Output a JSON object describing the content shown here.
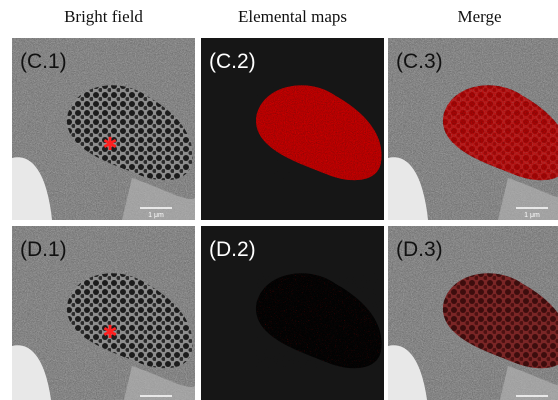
{
  "column_headers": [
    "Bright field",
    "Elemental maps",
    "Merge"
  ],
  "rows": [
    {
      "panels": [
        {
          "label": "(C.1)",
          "scale_bar": "1 μm"
        },
        {
          "label": "(C.2)"
        },
        {
          "label": "(C.3)",
          "scale_bar": "1 μm"
        }
      ]
    },
    {
      "panels": [
        {
          "label": "(D.1)",
          "scale_bar": "1 μm"
        },
        {
          "label": "(D.2)"
        },
        {
          "label": "(D.3)",
          "scale_bar": "1 μm"
        }
      ]
    }
  ]
}
